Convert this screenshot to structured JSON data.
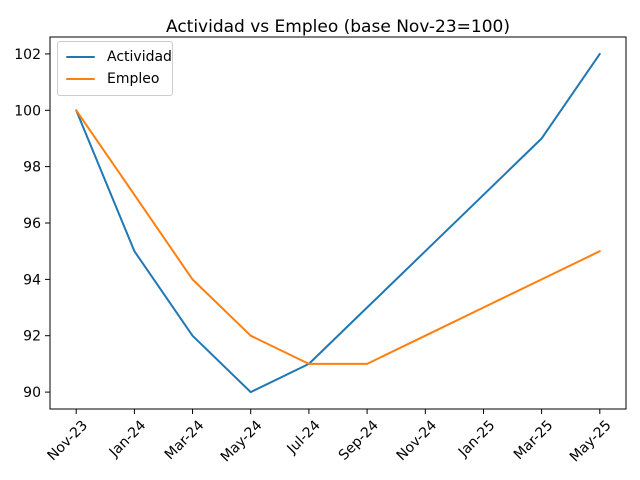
{
  "chart_data": {
    "type": "line",
    "title": "Actividad vs Empleo (base Nov-23=100)",
    "xlabel": "",
    "ylabel": "",
    "categories": [
      "Nov-23",
      "Jan-24",
      "Mar-24",
      "May-24",
      "Jul-24",
      "Sep-24",
      "Nov-24",
      "Jan-25",
      "Mar-25",
      "May-25"
    ],
    "series": [
      {
        "name": "Actividad",
        "color": "#1f77b4",
        "values": [
          100,
          95,
          92,
          90,
          91,
          93,
          95,
          97,
          99,
          102
        ]
      },
      {
        "name": "Empleo",
        "color": "#ff7f0e",
        "values": [
          100,
          97,
          94,
          92,
          91,
          91,
          92,
          93,
          94,
          95
        ]
      }
    ],
    "ylim": [
      89.4,
      102.6
    ],
    "yticks": [
      90,
      92,
      94,
      96,
      98,
      100,
      102
    ],
    "x_tick_rotation": 45,
    "grid": false,
    "legend_position": "upper left",
    "axis_color": "#000000",
    "background_color": "#ffffff",
    "legend_border_color": "#cccccc"
  }
}
